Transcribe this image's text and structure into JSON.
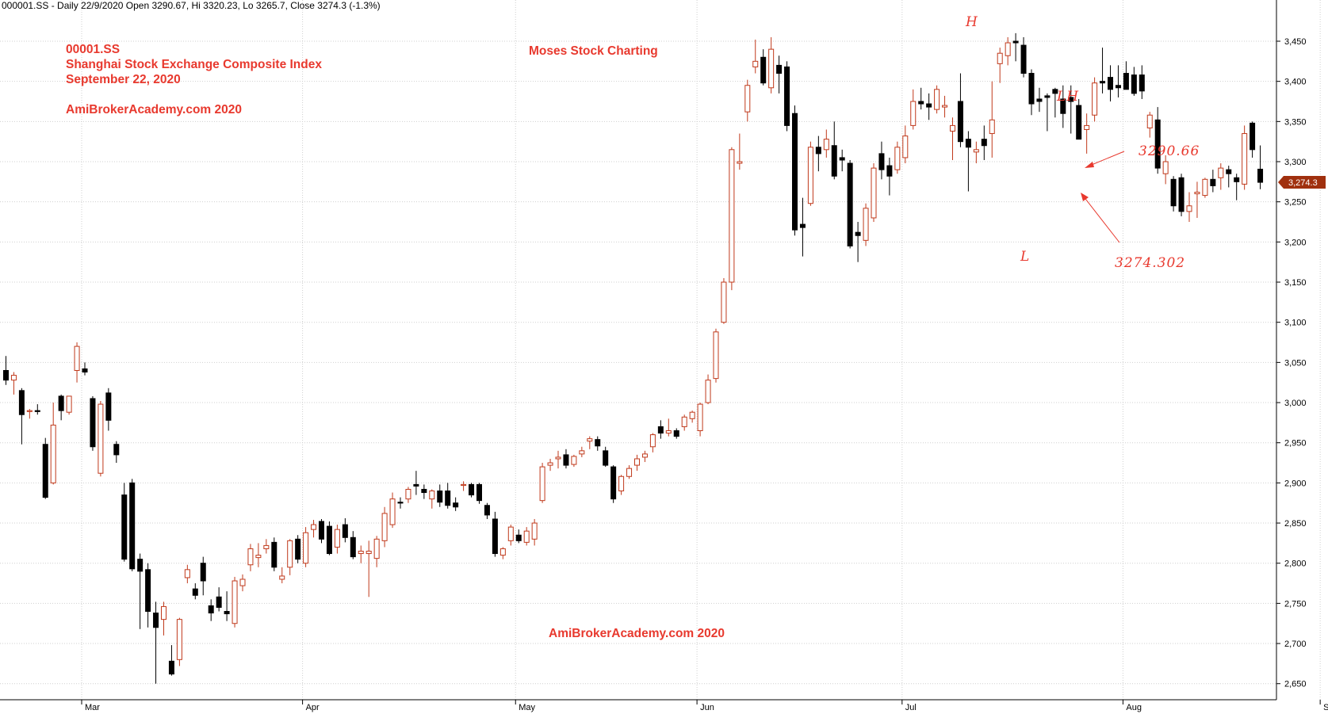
{
  "header": {
    "text": "000001.SS - Daily 22/9/2020 Open 3290.67, Hi 3320.23, Lo 3265.7, Close 3274.3 (-1.3%)"
  },
  "annotations": {
    "symbol": "00001.SS",
    "index_name": "Shanghai Stock Exchange Composite Index",
    "date": "September 22, 2020",
    "site_top": "AmiBrokerAcademy.com  2020",
    "brand": "Moses Stock Charting",
    "site_bottom": "AmiBrokerAcademy.com  2020",
    "mark_h": "H",
    "mark_lh": "LH",
    "mark_l": "L",
    "price_open_note": "3290.66",
    "price_close_note": "3274.302"
  },
  "colors": {
    "up": "#c0391b",
    "down": "#000000",
    "annotation": "#e8392e",
    "grid": "#cfcfcf",
    "last_price_tag": "#a0300e"
  },
  "chart_data": {
    "type": "candlestick",
    "title": "000001.SS - Daily",
    "ylim": [
      2640,
      3480
    ],
    "y_ticks": [
      2650,
      2700,
      2750,
      2800,
      2850,
      2900,
      2950,
      3000,
      3050,
      3100,
      3150,
      3200,
      3250,
      3300,
      3350,
      3400,
      3450
    ],
    "y_tick_labels": [
      "2,650",
      "2,700",
      "2,750",
      "2,800",
      "2,850",
      "2,900",
      "2,950",
      "3,000",
      "3,050",
      "3,100",
      "3,150",
      "3,200",
      "3,250",
      "3,300",
      "3,350",
      "3,400",
      "3,450"
    ],
    "x_ticks": [
      {
        "label": "Mar",
        "index": 10
      },
      {
        "label": "Apr",
        "index": 38
      },
      {
        "label": "May",
        "index": 65
      },
      {
        "label": "Jun",
        "index": 88
      },
      {
        "label": "Jul",
        "index": 114
      },
      {
        "label": "Aug",
        "index": 142
      },
      {
        "label": "Sep",
        "index": 167
      }
    ],
    "last_price": "3,274.3",
    "last_value": 3274.3,
    "grid": true,
    "candles": [
      [
        3040,
        3058,
        3022,
        3028
      ],
      [
        3028,
        3038,
        3010,
        3034
      ],
      [
        3015,
        3018,
        2948,
        2985
      ],
      [
        2989,
        2992,
        2980,
        2990
      ],
      [
        2990,
        2998,
        2985,
        2989
      ],
      [
        2948,
        2956,
        2880,
        2882
      ],
      [
        2900,
        3000,
        2898,
        2972
      ],
      [
        3008,
        3010,
        2978,
        2990
      ],
      [
        2988,
        3008,
        2985,
        3008
      ],
      [
        3040,
        3075,
        3025,
        3070
      ],
      [
        3042,
        3050,
        3034,
        3038
      ],
      [
        3005,
        3008,
        2940,
        2945
      ],
      [
        2912,
        3002,
        2908,
        2998
      ],
      [
        3012,
        3018,
        2965,
        2978
      ],
      [
        2948,
        2952,
        2925,
        2935
      ],
      [
        2885,
        2900,
        2802,
        2805
      ],
      [
        2900,
        2905,
        2790,
        2793
      ],
      [
        2805,
        2812,
        2718,
        2790
      ],
      [
        2792,
        2800,
        2720,
        2740
      ],
      [
        2738,
        2752,
        2650,
        2720
      ],
      [
        2730,
        2752,
        2710,
        2746
      ],
      [
        2678,
        2698,
        2660,
        2662
      ],
      [
        2680,
        2732,
        2672,
        2730
      ],
      [
        2782,
        2798,
        2775,
        2792
      ],
      [
        2768,
        2775,
        2755,
        2760
      ],
      [
        2800,
        2808,
        2760,
        2778
      ],
      [
        2747,
        2755,
        2728,
        2738
      ],
      [
        2758,
        2770,
        2740,
        2745
      ],
      [
        2740,
        2765,
        2728,
        2737
      ],
      [
        2725,
        2783,
        2720,
        2778
      ],
      [
        2772,
        2786,
        2765,
        2780
      ],
      [
        2798,
        2824,
        2790,
        2818
      ],
      [
        2807,
        2825,
        2795,
        2810
      ],
      [
        2818,
        2830,
        2812,
        2822
      ],
      [
        2826,
        2832,
        2790,
        2795
      ],
      [
        2780,
        2795,
        2775,
        2784
      ],
      [
        2795,
        2830,
        2785,
        2828
      ],
      [
        2830,
        2835,
        2800,
        2805
      ],
      [
        2800,
        2845,
        2795,
        2838
      ],
      [
        2842,
        2854,
        2832,
        2848
      ],
      [
        2852,
        2855,
        2825,
        2830
      ],
      [
        2846,
        2852,
        2810,
        2812
      ],
      [
        2820,
        2848,
        2812,
        2842
      ],
      [
        2848,
        2856,
        2826,
        2832
      ],
      [
        2832,
        2840,
        2805,
        2808
      ],
      [
        2812,
        2822,
        2800,
        2815
      ],
      [
        2812,
        2828,
        2758,
        2815
      ],
      [
        2806,
        2834,
        2795,
        2830
      ],
      [
        2828,
        2870,
        2820,
        2862
      ],
      [
        2848,
        2888,
        2844,
        2880
      ],
      [
        2876,
        2882,
        2868,
        2875
      ],
      [
        2880,
        2895,
        2875,
        2892
      ],
      [
        2898,
        2915,
        2885,
        2896
      ],
      [
        2892,
        2898,
        2880,
        2888
      ],
      [
        2880,
        2892,
        2868,
        2890
      ],
      [
        2890,
        2898,
        2870,
        2876
      ],
      [
        2890,
        2900,
        2868,
        2872
      ],
      [
        2875,
        2882,
        2865,
        2870
      ],
      [
        2898,
        2902,
        2890,
        2898
      ],
      [
        2898,
        2900,
        2882,
        2885
      ],
      [
        2898,
        2900,
        2874,
        2878
      ],
      [
        2872,
        2875,
        2855,
        2860
      ],
      [
        2855,
        2864,
        2808,
        2812
      ],
      [
        2810,
        2820,
        2805,
        2818
      ],
      [
        2828,
        2848,
        2822,
        2845
      ],
      [
        2835,
        2842,
        2825,
        2828
      ],
      [
        2826,
        2845,
        2822,
        2840
      ],
      [
        2830,
        2855,
        2822,
        2850
      ],
      [
        2878,
        2925,
        2875,
        2920
      ],
      [
        2922,
        2930,
        2915,
        2925
      ],
      [
        2930,
        2940,
        2918,
        2932
      ],
      [
        2935,
        2942,
        2918,
        2922
      ],
      [
        2923,
        2935,
        2920,
        2933
      ],
      [
        2936,
        2945,
        2932,
        2940
      ],
      [
        2952,
        2958,
        2942,
        2955
      ],
      [
        2954,
        2958,
        2940,
        2946
      ],
      [
        2940,
        2945,
        2920,
        2922
      ],
      [
        2920,
        2922,
        2875,
        2880
      ],
      [
        2890,
        2910,
        2885,
        2908
      ],
      [
        2908,
        2922,
        2905,
        2918
      ],
      [
        2922,
        2935,
        2915,
        2930
      ],
      [
        2932,
        2940,
        2926,
        2936
      ],
      [
        2945,
        2962,
        2938,
        2960
      ],
      [
        2970,
        2978,
        2955,
        2962
      ],
      [
        2962,
        2980,
        2958,
        2965
      ],
      [
        2965,
        2968,
        2955,
        2958
      ],
      [
        2970,
        2985,
        2965,
        2982
      ],
      [
        2980,
        2990,
        2975,
        2988
      ],
      [
        2965,
        3000,
        2958,
        2998
      ],
      [
        3000,
        3035,
        2998,
        3028
      ],
      [
        3030,
        3092,
        3025,
        3088
      ],
      [
        3100,
        3155,
        3098,
        3150
      ],
      [
        3150,
        3318,
        3140,
        3315
      ],
      [
        3298,
        3335,
        3290,
        3300
      ],
      [
        3362,
        3402,
        3350,
        3395
      ],
      [
        3418,
        3452,
        3410,
        3425
      ],
      [
        3430,
        3440,
        3395,
        3398
      ],
      [
        3392,
        3455,
        3385,
        3440
      ],
      [
        3420,
        3432,
        3385,
        3410
      ],
      [
        3418,
        3425,
        3338,
        3345
      ],
      [
        3360,
        3370,
        3208,
        3215
      ],
      [
        3222,
        3255,
        3182,
        3218
      ],
      [
        3248,
        3325,
        3245,
        3318
      ],
      [
        3318,
        3332,
        3288,
        3310
      ],
      [
        3315,
        3340,
        3305,
        3328
      ],
      [
        3320,
        3350,
        3278,
        3282
      ],
      [
        3305,
        3315,
        3288,
        3302
      ],
      [
        3298,
        3302,
        3192,
        3195
      ],
      [
        3212,
        3225,
        3175,
        3208
      ],
      [
        3202,
        3248,
        3195,
        3242
      ],
      [
        3230,
        3298,
        3225,
        3292
      ],
      [
        3310,
        3325,
        3278,
        3290
      ],
      [
        3295,
        3305,
        3258,
        3282
      ],
      [
        3290,
        3325,
        3285,
        3318
      ],
      [
        3305,
        3345,
        3298,
        3332
      ],
      [
        3345,
        3390,
        3340,
        3375
      ],
      [
        3375,
        3392,
        3365,
        3372
      ],
      [
        3372,
        3385,
        3352,
        3368
      ],
      [
        3365,
        3395,
        3360,
        3390
      ],
      [
        3368,
        3382,
        3355,
        3370
      ],
      [
        3338,
        3355,
        3302,
        3345
      ],
      [
        3375,
        3410,
        3318,
        3325
      ],
      [
        3328,
        3338,
        3263,
        3318
      ],
      [
        3312,
        3325,
        3298,
        3315
      ],
      [
        3328,
        3345,
        3302,
        3320
      ],
      [
        3335,
        3400,
        3305,
        3352
      ],
      [
        3422,
        3442,
        3398,
        3435
      ],
      [
        3432,
        3455,
        3420,
        3448
      ],
      [
        3450,
        3460,
        3425,
        3448
      ],
      [
        3445,
        3455,
        3405,
        3410
      ],
      [
        3410,
        3415,
        3358,
        3372
      ],
      [
        3378,
        3392,
        3362,
        3375
      ],
      [
        3382,
        3385,
        3338,
        3380
      ],
      [
        3390,
        3392,
        3355,
        3385
      ],
      [
        3378,
        3395,
        3342,
        3360
      ],
      [
        3380,
        3395,
        3335,
        3375
      ],
      [
        3370,
        3378,
        3330,
        3328
      ],
      [
        3340,
        3360,
        3310,
        3345
      ],
      [
        3358,
        3405,
        3350,
        3398
      ],
      [
        3400,
        3442,
        3385,
        3398
      ],
      [
        3405,
        3420,
        3375,
        3390
      ],
      [
        3395,
        3420,
        3380,
        3392
      ],
      [
        3410,
        3425,
        3392,
        3390
      ],
      [
        3408,
        3418,
        3382,
        3385
      ],
      [
        3408,
        3420,
        3378,
        3388
      ],
      [
        3342,
        3362,
        3330,
        3358
      ],
      [
        3352,
        3368,
        3285,
        3292
      ],
      [
        3285,
        3308,
        3272,
        3300
      ],
      [
        3278,
        3282,
        3238,
        3245
      ],
      [
        3280,
        3285,
        3232,
        3238
      ],
      [
        3238,
        3262,
        3225,
        3245
      ],
      [
        3260,
        3275,
        3230,
        3262
      ],
      [
        3258,
        3280,
        3255,
        3278
      ],
      [
        3278,
        3290,
        3262,
        3270
      ],
      [
        3280,
        3298,
        3265,
        3292
      ],
      [
        3290,
        3295,
        3268,
        3285
      ],
      [
        3280,
        3285,
        3252,
        3275
      ],
      [
        3272,
        3345,
        3265,
        3335
      ],
      [
        3348,
        3350,
        3305,
        3315
      ],
      [
        3290.67,
        3320.23,
        3265.7,
        3274.3
      ]
    ]
  }
}
